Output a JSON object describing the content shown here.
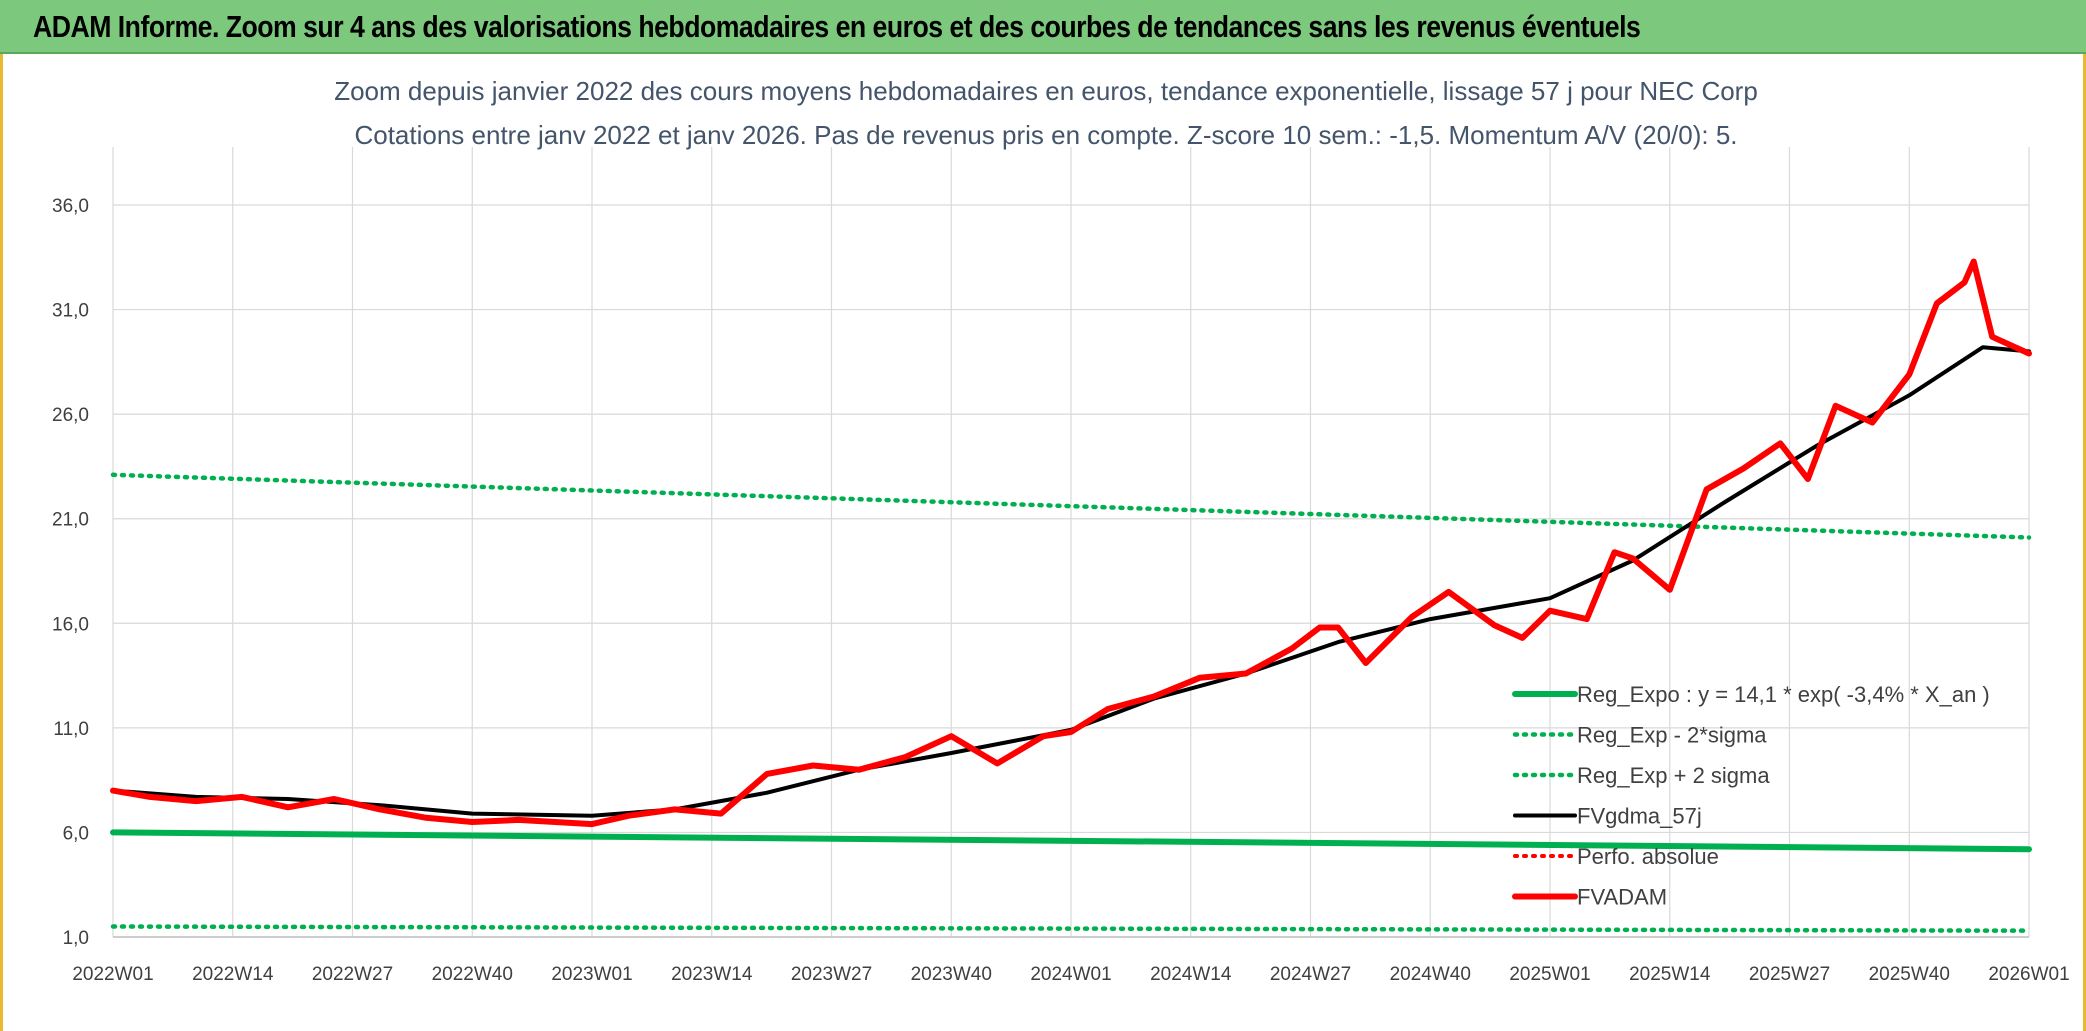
{
  "banner": {
    "title": "ADAM Informe. Zoom sur 4 ans des valorisations hebdomadaires en euros et des courbes de tendances sans les revenus éventuels"
  },
  "colors": {
    "banner_bg": "#7cc97d",
    "reg_expo": "#00b050",
    "fvgdma": "#000000",
    "fvadam": "#ff0000",
    "perfo": "#ff0000"
  },
  "chart_data": {
    "type": "line",
    "title": "Zoom depuis janvier 2022 des cours moyens hebdomadaires en euros, tendance exponentielle, lissage 57 j pour NEC Corp",
    "subtitle": "Cotations entre janv 2022 et janv 2026. Pas de revenus pris en compte. Z-score 10 sem.: -1,5. Momentum A/V (20/0): 5.",
    "x_ticks": [
      "2022W01",
      "2022W14",
      "2022W27",
      "2022W40",
      "2023W01",
      "2023W14",
      "2023W27",
      "2023W40",
      "2024W01",
      "2024W14",
      "2024W27",
      "2024W40",
      "2025W01",
      "2025W14",
      "2025W27",
      "2025W40",
      "2026W01"
    ],
    "y_ticks": [
      "1,0",
      "6,0",
      "11,0",
      "16,0",
      "21,0",
      "26,0",
      "31,0",
      "36,0"
    ],
    "ylim": [
      1,
      36
    ],
    "grid": true,
    "legend_position": "lower-right",
    "series": [
      {
        "name": "Reg_Expo : y = 14,1 * exp( -3,4% *  X_an )",
        "style": "solid-thick",
        "x": [
          "2022W01",
          "2026W01"
        ],
        "values": [
          6.0,
          5.2
        ]
      },
      {
        "name": "Reg_Exp - 2*sigma",
        "style": "dotted",
        "x": [
          "2022W01",
          "2026W01"
        ],
        "values": [
          1.5,
          1.3
        ]
      },
      {
        "name": "Reg_Exp + 2 sigma",
        "style": "dotted",
        "x": [
          "2022W01",
          "2026W01"
        ],
        "values": [
          23.1,
          20.1
        ]
      },
      {
        "name": "FVgdma_57j",
        "style": "solid",
        "x": [
          "2022W01",
          "2022W10",
          "2022W20",
          "2022W30",
          "2022W40",
          "2023W01",
          "2023W10",
          "2023W20",
          "2023W30",
          "2023W40",
          "2024W01",
          "2024W10",
          "2024W20",
          "2024W30",
          "2024W40",
          "2025W01",
          "2025W10",
          "2025W20",
          "2025W30",
          "2025W40",
          "2025W48",
          "2026W01"
        ],
        "values": [
          8.0,
          7.7,
          7.6,
          7.3,
          6.9,
          6.8,
          7.1,
          7.9,
          9.0,
          9.8,
          10.9,
          12.4,
          13.6,
          15.1,
          16.2,
          17.2,
          19.0,
          21.8,
          24.5,
          26.9,
          29.2,
          29.0
        ]
      },
      {
        "name": "Perfo. absolue",
        "style": "dotted",
        "x": [],
        "values": []
      },
      {
        "name": "FVADAM",
        "style": "solid-thick",
        "x": [
          "2022W01",
          "2022W05",
          "2022W10",
          "2022W15",
          "2022W20",
          "2022W25",
          "2022W30",
          "2022W35",
          "2022W40",
          "2022W45",
          "2023W01",
          "2023W05",
          "2023W10",
          "2023W15",
          "2023W20",
          "2023W25",
          "2023W30",
          "2023W35",
          "2023W40",
          "2023W45",
          "2023W50",
          "2024W01",
          "2024W05",
          "2024W10",
          "2024W15",
          "2024W20",
          "2024W25",
          "2024W28",
          "2024W30",
          "2024W33",
          "2024W38",
          "2024W42",
          "2024W47",
          "2024W50",
          "2025W01",
          "2025W05",
          "2025W08",
          "2025W10",
          "2025W14",
          "2025W18",
          "2025W22",
          "2025W26",
          "2025W29",
          "2025W32",
          "2025W36",
          "2025W40",
          "2025W43",
          "2025W46",
          "2025W47",
          "2025W49",
          "2026W01"
        ],
        "values": [
          8.0,
          7.7,
          7.5,
          7.7,
          7.2,
          7.6,
          7.1,
          6.7,
          6.5,
          6.6,
          6.4,
          6.8,
          7.1,
          6.9,
          8.8,
          9.2,
          9.0,
          9.6,
          10.6,
          9.3,
          10.6,
          10.8,
          11.9,
          12.5,
          13.4,
          13.6,
          14.8,
          15.8,
          15.8,
          14.1,
          16.3,
          17.5,
          15.9,
          15.3,
          16.6,
          16.2,
          19.4,
          19.1,
          17.6,
          22.4,
          23.4,
          24.6,
          22.9,
          26.4,
          25.6,
          27.9,
          31.3,
          32.3,
          33.3,
          29.7,
          28.9
        ]
      }
    ]
  }
}
